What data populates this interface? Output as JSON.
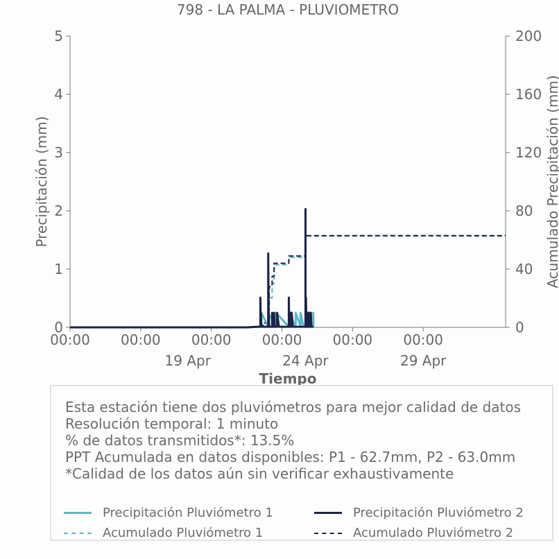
{
  "chart_data": {
    "type": "line",
    "title": "798 - LA PALMA - PLUVIOMETRO",
    "xlabel": "Tiempo",
    "ylabel": "Precipitación (mm)",
    "y2label": "Acumulado Precipitación (mm)",
    "ylim": [
      0,
      5
    ],
    "y2lim": [
      0,
      200
    ],
    "yticks": [
      "0",
      "1",
      "2",
      "3",
      "4",
      "5"
    ],
    "y2ticks": [
      "0",
      "40",
      "80",
      "120",
      "160",
      "200"
    ],
    "xlim": [
      "2024-04-14T00:00",
      "2024-05-02T12:00"
    ],
    "xticks_major": [
      {
        "x": "2024-04-14T00:00",
        "label": "00:00"
      },
      {
        "x": "2024-04-17T00:00",
        "label": "00:00"
      },
      {
        "x": "2024-04-20T00:00",
        "label": "00:00"
      },
      {
        "x": "2024-04-23T00:00",
        "label": "00:00"
      },
      {
        "x": "2024-04-26T00:00",
        "label": "00:00"
      },
      {
        "x": "2024-04-29T00:00",
        "label": "00:00"
      }
    ],
    "xticks_minor": [
      {
        "x": "2024-04-19T00:00",
        "label": "19 Apr"
      },
      {
        "x": "2024-04-24T00:00",
        "label": "24 Apr"
      },
      {
        "x": "2024-04-29T00:00",
        "label": "29 Apr"
      }
    ],
    "series": [
      {
        "name": "Precipitación Pluviómetro 1",
        "axis": "left",
        "style": "solid",
        "color": "#5bb8c9",
        "x": [
          "2024-04-14T00:00",
          "2024-04-21T12:00",
          "2024-04-22T00:00",
          "2024-04-22T02:00",
          "2024-04-22T02:01",
          "2024-04-22T02:30",
          "2024-04-22T03:00",
          "2024-04-22T03:01",
          "2024-04-22T10:00",
          "2024-04-22T10:01",
          "2024-04-22T18:00",
          "2024-04-22T18:01",
          "2024-04-23T07:00",
          "2024-04-23T07:01",
          "2024-04-23T14:00",
          "2024-04-23T14:01",
          "2024-04-23T19:00",
          "2024-04-23T19:01",
          "2024-04-23T22:00",
          "2024-04-24T00:00",
          "2024-04-24T00:01",
          "2024-04-24T00:02",
          "2024-04-24T04:00",
          "2024-04-24T04:01",
          "2024-04-24T04:02",
          "2024-04-24T06:30",
          "2024-04-24T08:00",
          "2024-04-24T08:01",
          "2024-04-24T08:02",
          "2024-04-24T09:00"
        ],
        "y": [
          0,
          0,
          0.01,
          0.01,
          0.25,
          0.01,
          0.01,
          0.25,
          0.01,
          0.25,
          0.01,
          0.25,
          0.01,
          0.25,
          0.01,
          0.25,
          0.01,
          0.25,
          0.01,
          0.01,
          0.25,
          0.01,
          0.01,
          0.25,
          0.01,
          0.01,
          0.01,
          0.25,
          0.01,
          0.01
        ]
      },
      {
        "name": "Precipitación Pluviómetro 2",
        "axis": "left",
        "style": "solid",
        "color": "#1c2345",
        "x": [
          "2024-04-14T00:00",
          "2024-04-21T12:00",
          "2024-04-22T00:00",
          "2024-04-22T02:00",
          "2024-04-22T02:01",
          "2024-04-22T02:30",
          "2024-04-22T02:31",
          "2024-04-22T03:00",
          "2024-04-22T10:00",
          "2024-04-22T10:01",
          "2024-04-22T10:30",
          "2024-04-22T10:31",
          "2024-04-22T11:00",
          "2024-04-22T14:00",
          "2024-04-22T14:01",
          "2024-04-22T14:30",
          "2024-04-22T16:00",
          "2024-04-22T16:01",
          "2024-04-22T16:30",
          "2024-04-22T19:00",
          "2024-04-22T19:01",
          "2024-04-22T21:00",
          "2024-04-23T07:00",
          "2024-04-23T07:01",
          "2024-04-23T07:30",
          "2024-04-23T07:31",
          "2024-04-23T08:00",
          "2024-04-23T09:00",
          "2024-04-23T09:01",
          "2024-04-23T10:00",
          "2024-04-23T10:01",
          "2024-04-23T11:00",
          "2024-04-24T00:00",
          "2024-04-24T00:01",
          "2024-04-24T00:02",
          "2024-04-24T00:30",
          "2024-04-24T00:31",
          "2024-04-24T01:00",
          "2024-04-24T01:30",
          "2024-04-24T01:31",
          "2024-04-24T02:00",
          "2024-04-24T02:30",
          "2024-04-24T02:31",
          "2024-04-24T03:00",
          "2024-04-24T04:00",
          "2024-04-24T04:01",
          "2024-04-24T04:02",
          "2024-04-24T04:30",
          "2024-04-24T04:31",
          "2024-04-24T05:00",
          "2024-04-24T05:30",
          "2024-04-24T05:31",
          "2024-04-24T06:00",
          "2024-04-24T08:00"
        ],
        "y": [
          0,
          0,
          0.01,
          0.01,
          0.51,
          0.01,
          0.25,
          0.01,
          0.01,
          1.27,
          0.01,
          0.25,
          0.01,
          0.01,
          0.25,
          0.01,
          0.01,
          0.25,
          0.01,
          0.01,
          0.25,
          0.01,
          0.01,
          0.51,
          0.01,
          0.25,
          0.01,
          0.01,
          0.25,
          0.01,
          0.25,
          0.01,
          0.01,
          2.03,
          0.01,
          0.01,
          0.51,
          0.01,
          0.01,
          0.25,
          0.01,
          0.01,
          0.25,
          0.01,
          0.01,
          0.25,
          0.01,
          0.01,
          0.25,
          0.01,
          0.01,
          0.25,
          0.01,
          0.01
        ]
      },
      {
        "name": "Acumulado Pluviómetro 1",
        "axis": "right",
        "style": "dashed",
        "color": "#5bb8c9",
        "x": [
          "2024-04-14T00:00",
          "2024-04-21T12:00",
          "2024-04-21T18:00",
          "2024-04-22T02:00",
          "2024-04-22T06:00",
          "2024-04-22T10:00",
          "2024-04-22T11:00",
          "2024-04-22T14:00",
          "2024-04-22T16:00",
          "2024-04-22T17:00",
          "2024-04-23T05:00",
          "2024-04-23T07:00",
          "2024-04-23T08:00",
          "2024-04-24T00:00",
          "2024-04-24T00:01",
          "2024-04-24T06:00",
          "2024-05-02T12:00"
        ],
        "y": [
          0,
          0,
          0.5,
          1,
          3,
          10,
          20,
          30,
          42,
          43,
          43,
          48,
          48,
          48,
          62.7,
          62.7,
          62.7
        ]
      },
      {
        "name": "Acumulado Pluviómetro 2",
        "axis": "right",
        "style": "dashed",
        "color": "#1c2345",
        "x": [
          "2024-04-14T00:00",
          "2024-04-21T12:00",
          "2024-04-21T18:00",
          "2024-04-22T02:00",
          "2024-04-22T06:00",
          "2024-04-22T10:00",
          "2024-04-22T11:00",
          "2024-04-22T14:00",
          "2024-04-22T16:00",
          "2024-04-22T17:00",
          "2024-04-23T05:00",
          "2024-04-23T07:00",
          "2024-04-23T08:00",
          "2024-04-24T00:00",
          "2024-04-24T00:01",
          "2024-04-24T06:00",
          "2024-05-02T12:00"
        ],
        "y": [
          0,
          0,
          0.5,
          1.5,
          3,
          12,
          28,
          35,
          44,
          44,
          44,
          49,
          49,
          49,
          63.0,
          63.0,
          63.0
        ]
      }
    ]
  },
  "info": {
    "lines": [
      "Esta estación tiene dos pluviómetros para mejor calidad de datos",
      "Resolución temporal: 1 minuto",
      "% de datos transmitidos*: 13.5%",
      "PPT Acumulada en datos disponibles: P1 - 62.7mm, P2 - 63.0mm",
      "*Calidad de los datos aún sin verificar exhaustivamente"
    ]
  },
  "legend": [
    {
      "label": "Precipitación Pluviómetro 1",
      "color": "#5bb8c9",
      "style": "solid"
    },
    {
      "label": "Precipitación Pluviómetro 2",
      "color": "#1c2345",
      "style": "solid"
    },
    {
      "label": "Acumulado Pluviómetro 1",
      "color": "#5bb8c9",
      "style": "dashed"
    },
    {
      "label": "Acumulado Pluviómetro 2",
      "color": "#1c2345",
      "style": "dashed"
    }
  ]
}
